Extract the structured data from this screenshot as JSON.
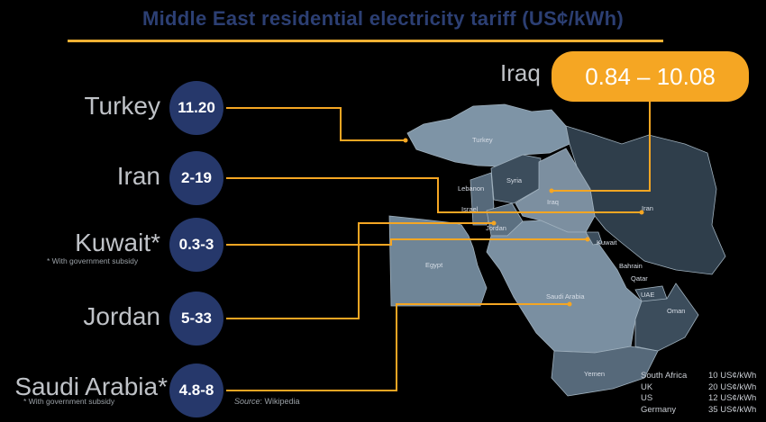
{
  "title": "Middle East residential electricity tariff (US¢/kWh)",
  "iraq": {
    "label": "Iraq",
    "value": "0.84 – 10.08"
  },
  "countries": [
    {
      "label": "Turkey",
      "value": "11.20",
      "note": ""
    },
    {
      "label": "Iran",
      "value": "2-19",
      "note": ""
    },
    {
      "label": "Kuwait*",
      "value": "0.3-3",
      "note": "* With government subsidy"
    },
    {
      "label": "Jordan",
      "value": "5-33",
      "note": ""
    },
    {
      "label": "Saudi Arabia*",
      "value": "4.8-8",
      "note": "* With government subsidy"
    }
  ],
  "map_labels": {
    "turkey": "Turkey",
    "syria": "Syria",
    "lebanon": "Lebanon",
    "israel": "Israel",
    "jordan": "Jordan",
    "iraq": "Iraq",
    "iran": "Iran",
    "kuwait": "Kuwait",
    "egypt": "Egypt",
    "saudi": "Saudi Arabia",
    "bahrain": "Bahrain",
    "qatar": "Qatar",
    "uae": "UAE",
    "oman": "Oman",
    "yemen": "Yemen"
  },
  "source": {
    "prefix": "Source",
    "text": ": Wikipedia"
  },
  "reference": [
    {
      "country": "South Africa",
      "value": "10 US¢/kWh"
    },
    {
      "country": "UK",
      "value": "20 US¢/kWh"
    },
    {
      "country": "US",
      "value": "12 US¢/kWh"
    },
    {
      "country": "Germany",
      "value": "35 US¢/kWh"
    }
  ],
  "colors": {
    "accent": "#f5a623",
    "circle": "#26386b",
    "map_light": "#6b8193",
    "map_dark": "#2f3e4b",
    "title": "#2c3f73"
  }
}
